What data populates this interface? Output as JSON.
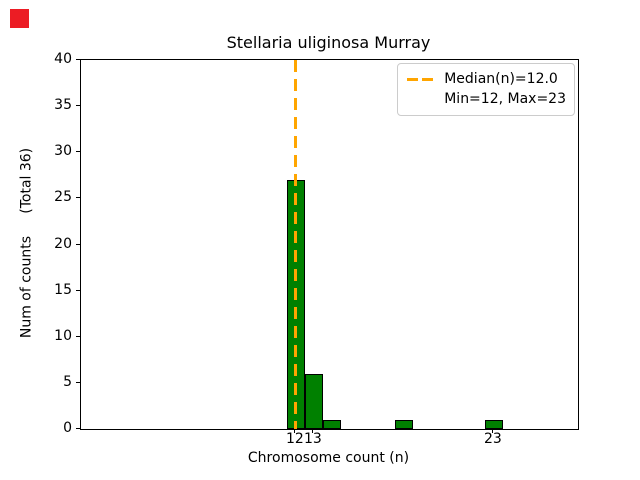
{
  "corner_marker": {
    "color": "#ec1c24"
  },
  "chart_data": {
    "type": "bar",
    "title": "Stellaria uliginosa Murray",
    "xlabel": "Chromosome count (n)",
    "ylabel": "Num of counts     (Total 36)",
    "categories": [
      12,
      13,
      14,
      18,
      23
    ],
    "values": [
      27,
      6,
      1,
      1,
      1
    ],
    "total": 36,
    "bar_width": 1,
    "xlim": [
      0.06,
      27.67
    ],
    "ylim": [
      0,
      40
    ],
    "xticks": [
      12,
      13,
      23
    ],
    "yticks": [
      0,
      5,
      10,
      15,
      20,
      25,
      30,
      35,
      40
    ],
    "grid": false,
    "colors": {
      "bar_fill": "#008000",
      "bar_edge": "#000000",
      "median_line": "#FFA500",
      "legend_border": "#cccccc"
    },
    "median_line": {
      "x": 12.0,
      "style": "dashed"
    },
    "stats": {
      "median": 12.0,
      "min": 12,
      "max": 23
    },
    "legend": {
      "position": "upper right",
      "lines": [
        "Median(n)=12.0",
        "Min=12, Max=23"
      ]
    }
  }
}
